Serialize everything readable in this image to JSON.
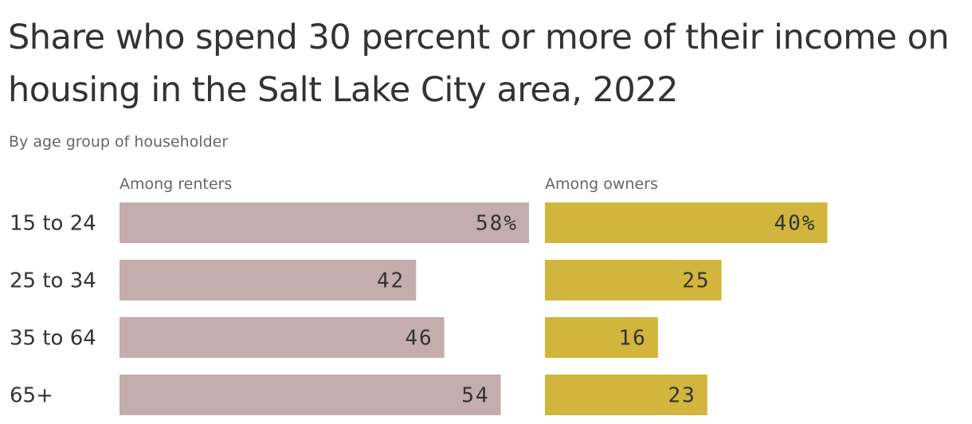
{
  "header": {
    "title": "Share who spend 30 percent or more of their income on housing in the Salt Lake City area, 2022",
    "subtitle": "By age group of householder"
  },
  "chart_data": {
    "type": "bar",
    "orientation": "horizontal",
    "title": "Share who spend 30 percent or more of their income on housing in the Salt Lake City area, 2022",
    "subtitle": "By age group of householder",
    "categories": [
      "15 to 24",
      "25 to 34",
      "35 to 64",
      "65+"
    ],
    "series": [
      {
        "name": "Among renters",
        "values": [
          58,
          42,
          46,
          54
        ],
        "color": "#c4adad"
      },
      {
        "name": "Among owners",
        "values": [
          40,
          25,
          16,
          23
        ],
        "color": "#d1b53c"
      }
    ],
    "value_suffix_first": "%",
    "xlim": [
      0,
      58
    ],
    "grid": false,
    "legend": "panel-titles"
  }
}
